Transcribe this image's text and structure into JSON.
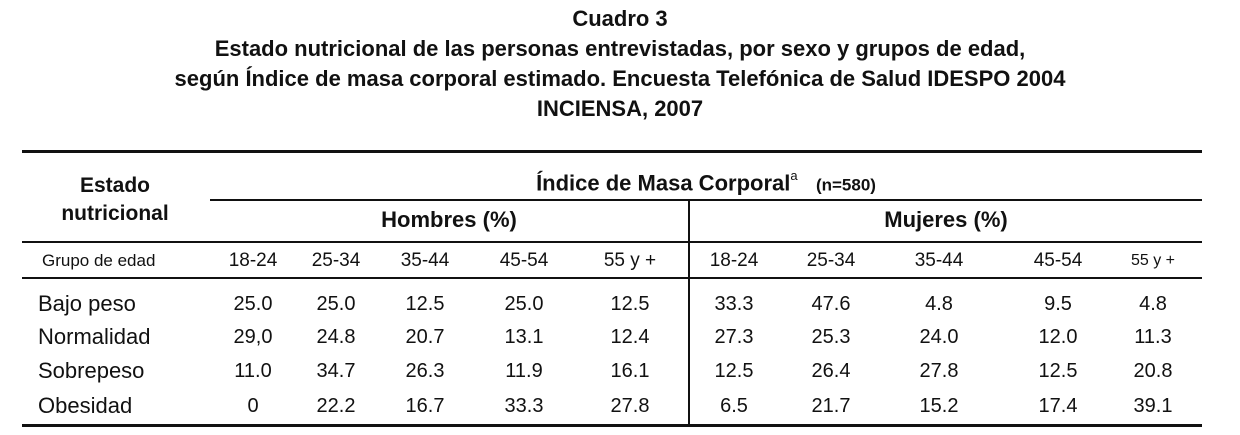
{
  "title": {
    "line1": "Cuadro 3",
    "line2": "Estado nutricional de las personas entrevistadas, por sexo y grupos de edad,",
    "line3": "según Índice de masa corporal estimado. Encuesta Telefónica de Salud IDESPO 2004",
    "line4": "INCIENSA, 2007"
  },
  "table": {
    "stub_header": {
      "line1": "Estado",
      "line2": "nutricional"
    },
    "spanner": {
      "label": "Índice de Masa Corporal",
      "superscript": "a",
      "n": "(n=580)"
    },
    "groups": {
      "men": "Hombres (%)",
      "women": "Mujeres (%)"
    },
    "age_row_label": "Grupo de edad",
    "age_groups": [
      "18-24",
      "25-34",
      "35-44",
      "45-54",
      "55 y +",
      "18-24",
      "25-34",
      "35-44",
      "45-54",
      "55 y +"
    ],
    "rows": [
      {
        "label": "Bajo peso",
        "values": [
          "25.0",
          "25.0",
          "12.5",
          "25.0",
          "12.5",
          "33.3",
          "47.6",
          "4.8",
          "9.5",
          "4.8"
        ]
      },
      {
        "label": "Normalidad",
        "values": [
          "29,0",
          "24.8",
          "20.7",
          "13.1",
          "12.4",
          "27.3",
          "25.3",
          "24.0",
          "12.0",
          "11.3"
        ]
      },
      {
        "label": "Sobrepeso",
        "values": [
          "11.0",
          "34.7",
          "26.3",
          "11.9",
          "16.1",
          "12.5",
          "26.4",
          "27.8",
          "12.5",
          "20.8"
        ]
      },
      {
        "label": "Obesidad",
        "values": [
          "0",
          "22.2",
          "16.7",
          "33.3",
          "27.8",
          "6.5",
          "21.7",
          "15.2",
          "17.4",
          "39.1"
        ]
      }
    ]
  }
}
